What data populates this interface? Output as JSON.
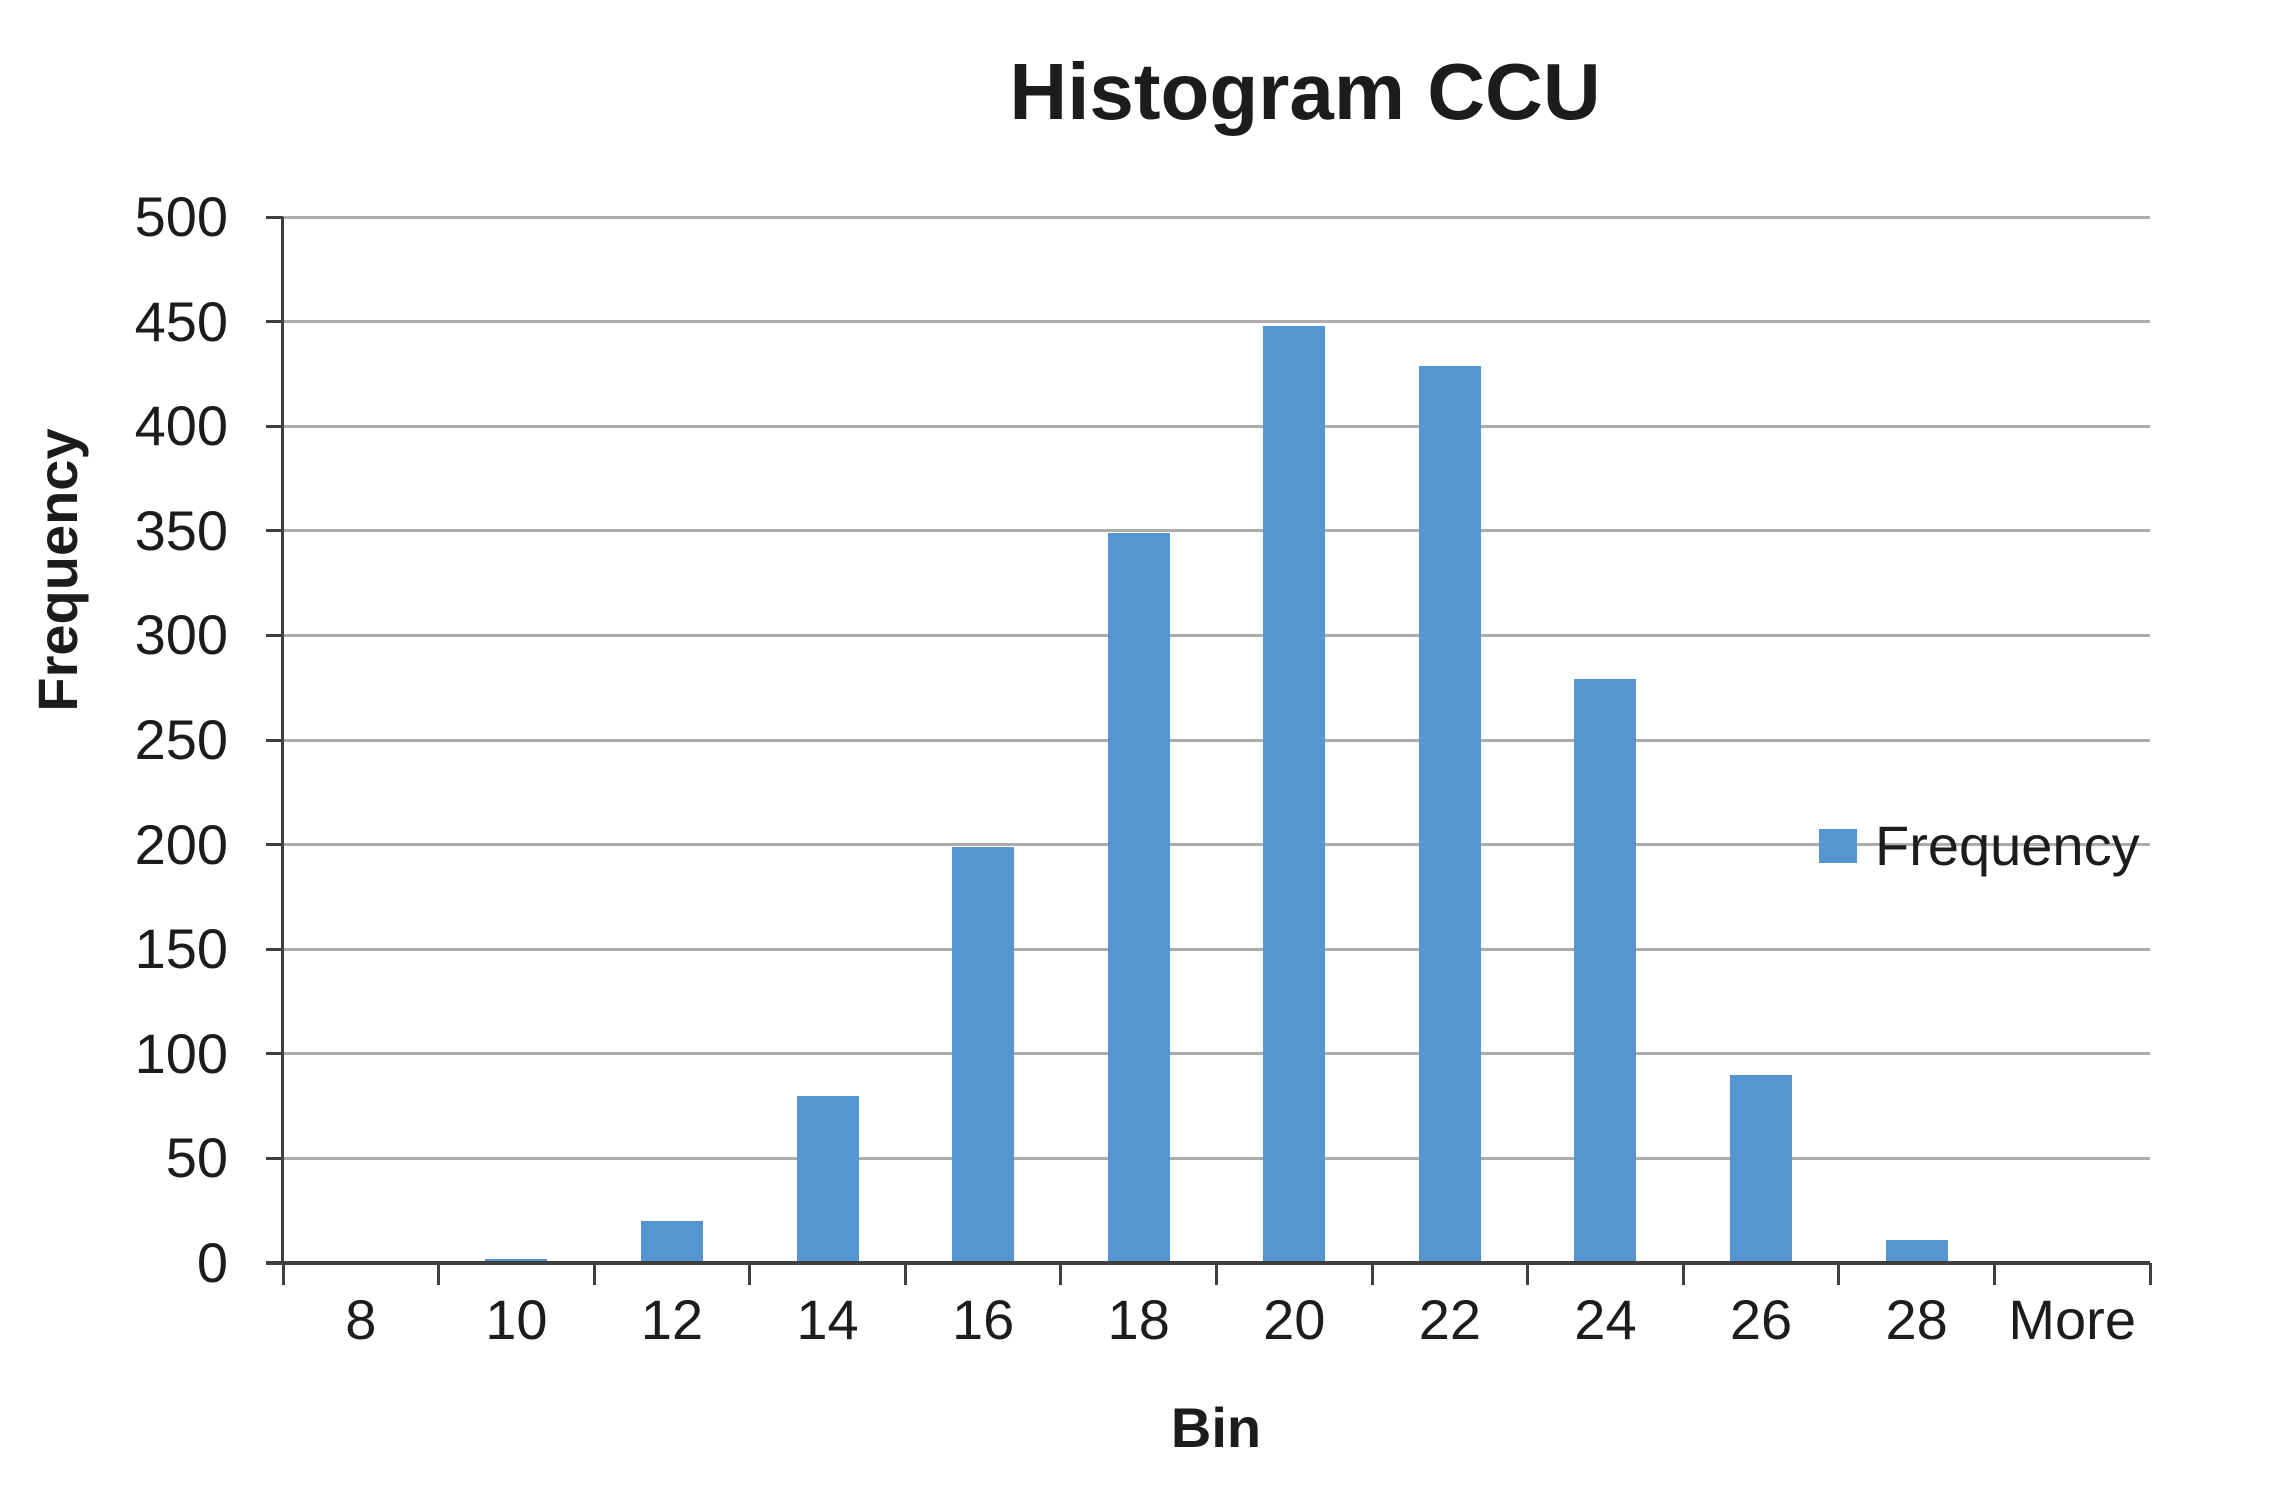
{
  "chart_data": {
    "type": "bar",
    "title": "Histogram CCU",
    "xlabel": "Bin",
    "ylabel": "Frequency",
    "categories": [
      "8",
      "10",
      "12",
      "14",
      "16",
      "18",
      "20",
      "22",
      "24",
      "26",
      "28",
      "More"
    ],
    "series": [
      {
        "name": "Frequency",
        "values": [
          0,
          2,
          20,
          80,
          199,
          349,
          448,
          429,
          279,
          90,
          11,
          1
        ]
      }
    ],
    "ylim": [
      0,
      500
    ],
    "yticks": [
      0,
      50,
      100,
      150,
      200,
      250,
      300,
      350,
      400,
      450,
      500
    ],
    "grid": true,
    "legend_position": "right-middle",
    "colors": {
      "bar": "#5596d2",
      "gridline": "#acacac",
      "axis": "#3f3f3f",
      "text": "#1c1c1c"
    }
  }
}
